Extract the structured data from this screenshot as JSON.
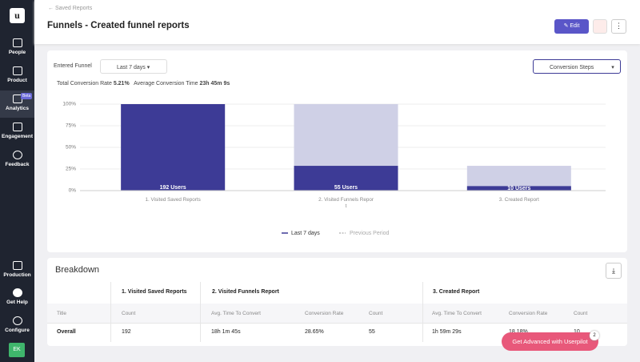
{
  "sidebar": {
    "items": [
      "People",
      "Product",
      "Analytics",
      "Engagement",
      "Feedback"
    ],
    "badge": "Beta",
    "bottom": [
      "Production",
      "Get Help",
      "Configure"
    ],
    "avatar": "EK"
  },
  "header": {
    "back": "Saved Reports",
    "title": "Funnels - Created funnel reports",
    "edit": "Edit"
  },
  "filters": {
    "label": "Entered Funnel",
    "date": "Last 7 days",
    "view": "Conversion Steps"
  },
  "summary": {
    "rate_label": "Total Conversion Rate",
    "rate": "5.21%",
    "time_label": "Average Conversion Time",
    "time": "23h 45m 9s"
  },
  "chart_data": {
    "type": "bar",
    "categories": [
      "1. Visited Saved Reports",
      "2. Visited Funnels Report",
      "3. Created Report"
    ],
    "series": [
      {
        "name": "Last 7 days",
        "color": "#3d3b96",
        "values": [
          100,
          28.65,
          5.21
        ]
      },
      {
        "name": "Previous Period",
        "color": "#cfd0e6",
        "values": [
          100,
          100,
          28.65
        ]
      }
    ],
    "bar_labels": [
      "192 Users",
      "55 Users",
      "10 Users"
    ],
    "ylim": [
      0,
      100
    ],
    "yticks": [
      {
        "value": 0,
        "label": "0%"
      },
      {
        "value": 25,
        "label": "25%"
      },
      {
        "value": 50,
        "label": "50%"
      },
      {
        "value": 75,
        "label": "75%"
      },
      {
        "value": 100,
        "label": "100%"
      }
    ],
    "grid": true
  },
  "breakdown": {
    "title": "Breakdown",
    "groups": [
      "1. Visited Saved Reports",
      "2. Visited Funnels Report",
      "3. Created Report"
    ],
    "columns": [
      "Title",
      "Count",
      "Avg. Time To Convert",
      "Conversion Rate",
      "Count",
      "Avg. Time To Convert",
      "Conversion Rate",
      "Count"
    ],
    "rows": [
      [
        "Overall",
        "192",
        "18h 1m 45s",
        "28.65%",
        "55",
        "1h 59m 29s",
        "18.18%",
        "10"
      ]
    ]
  },
  "cta": {
    "label": "Get Advanced with Userpilot",
    "badge": "2"
  }
}
